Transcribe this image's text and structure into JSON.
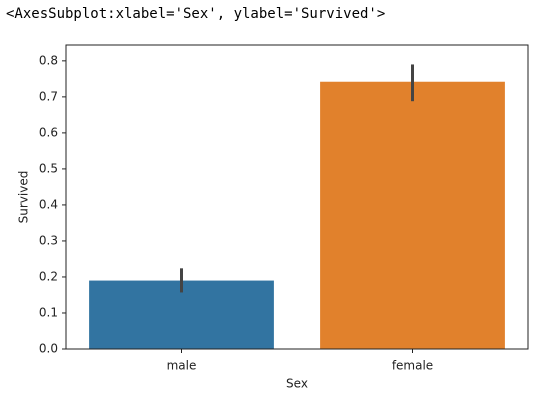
{
  "output_text": "<AxesSubplot:xlabel='Sex', ylabel='Survived'>",
  "chart_data": {
    "type": "bar",
    "xlabel": "Sex",
    "ylabel": "Survived",
    "categories": [
      "male",
      "female"
    ],
    "values": [
      0.19,
      0.742
    ],
    "colors": [
      "#3274a1",
      "#e1812c"
    ],
    "ci_low": [
      0.157,
      0.688
    ],
    "ci_high": [
      0.224,
      0.79
    ],
    "ylim": [
      0,
      0.844
    ],
    "yticks": [
      {
        "value": 0,
        "label": "0.0"
      },
      0.1,
      0.2,
      0.3,
      0.4,
      0.5,
      0.6,
      0.7,
      0.8
    ]
  }
}
